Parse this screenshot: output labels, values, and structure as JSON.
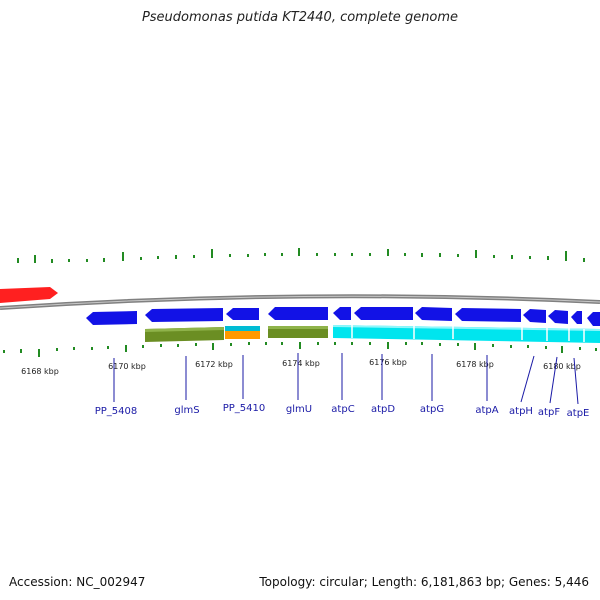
{
  "title": "Pseudomonas putida KT2440, complete genome",
  "accession_text": "Accession: NC_002947",
  "summary_text": "Topology: circular; Length: 6,181,863 bp; Genes: 5,446",
  "colors": {
    "backbone": "#808080",
    "cds_forward_red": "#ff2020",
    "cds_blue": "#1212e6",
    "olive_track": "#6b8e23",
    "cyan_track": "#00e5ee",
    "orange_track": "#ff9900",
    "tick_green": "#228b22",
    "label_blue": "#1a1aa6"
  },
  "kbp_labels": [
    "6168 kbp",
    "6170 kbp",
    "6172 kbp",
    "6174 kbp",
    "6176 kbp",
    "6178 kbp",
    "6180 kbp"
  ],
  "genes": [
    {
      "name": "PP_5408"
    },
    {
      "name": "glmS"
    },
    {
      "name": "PP_5410"
    },
    {
      "name": "glmU"
    },
    {
      "name": "atpC"
    },
    {
      "name": "atpD"
    },
    {
      "name": "atpG"
    },
    {
      "name": "atpA"
    },
    {
      "name": "atpH"
    },
    {
      "name": "atpF"
    },
    {
      "name": "atpE"
    }
  ]
}
